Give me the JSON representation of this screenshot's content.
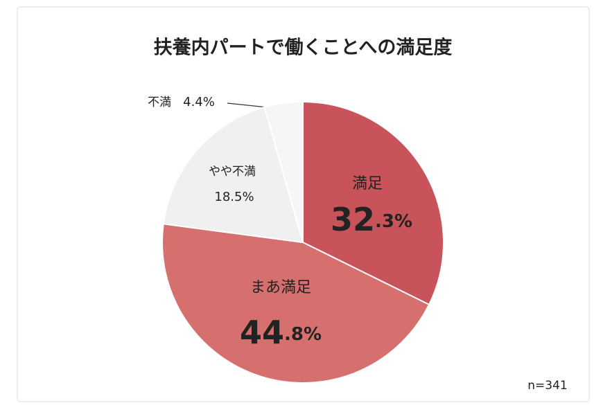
{
  "chart_data": {
    "type": "pie",
    "title": "扶養内パートで働くことへの満足度",
    "categories": [
      "満足",
      "まあ満足",
      "やや不満",
      "不満"
    ],
    "values": [
      32.3,
      44.8,
      18.5,
      4.4
    ],
    "value_labels": [
      "32.3%",
      "44.8%",
      "18.5%",
      "4.4%"
    ],
    "colors": [
      "#c9535a",
      "#d5706f",
      "#f0f0f0",
      "#f6f6f6"
    ],
    "note": "n=341"
  }
}
